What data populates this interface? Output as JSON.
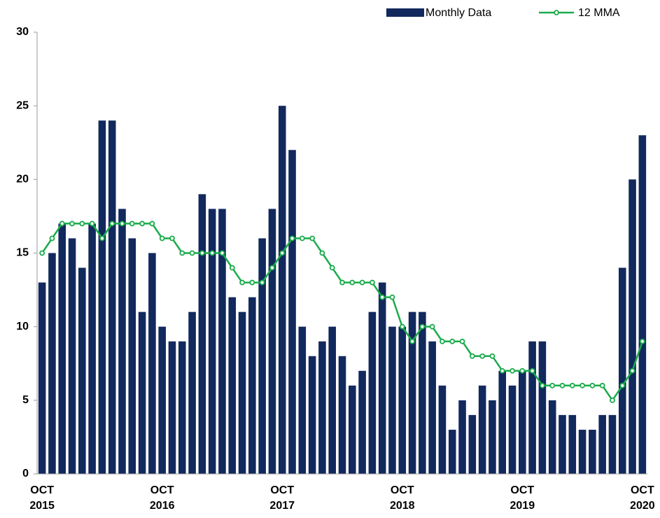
{
  "chart_data": {
    "type": "bar_line",
    "categories": [
      "OCT 2015",
      null,
      null,
      null,
      null,
      null,
      null,
      null,
      null,
      null,
      null,
      null,
      "OCT 2016",
      null,
      null,
      null,
      null,
      null,
      null,
      null,
      null,
      null,
      null,
      null,
      "OCT 2017",
      null,
      null,
      null,
      null,
      null,
      null,
      null,
      null,
      null,
      null,
      null,
      "OCT 2018",
      null,
      null,
      null,
      null,
      null,
      null,
      null,
      null,
      null,
      null,
      null,
      "OCT 2019",
      null,
      null,
      null,
      null,
      null,
      null,
      null,
      null,
      null,
      null,
      null,
      "OCT 2020"
    ],
    "series": [
      {
        "name": "Monthly Data",
        "type": "bar",
        "color": "#12295d",
        "values": [
          13,
          15,
          17,
          16,
          14,
          17,
          24,
          24,
          18,
          16,
          11,
          15,
          10,
          9,
          9,
          11,
          19,
          18,
          18,
          12,
          11,
          12,
          16,
          18,
          25,
          22,
          10,
          8,
          9,
          10,
          8,
          6,
          7,
          11,
          13,
          10,
          10,
          11,
          11,
          9,
          6,
          3,
          5,
          4,
          6,
          5,
          7,
          6,
          7,
          9,
          9,
          5,
          4,
          4,
          3,
          3,
          4,
          4,
          14,
          20,
          23
        ]
      },
      {
        "name": "12 MMA",
        "type": "line",
        "color": "#1aab4b",
        "values": [
          15,
          16,
          17,
          17,
          17,
          17,
          16,
          17,
          17,
          17,
          17,
          17,
          16,
          16,
          15,
          15,
          15,
          15,
          15,
          14,
          13,
          13,
          13,
          14,
          15,
          16,
          16,
          16,
          15,
          14,
          13,
          13,
          13,
          13,
          12,
          12,
          10,
          9,
          10,
          10,
          9,
          9,
          9,
          8,
          8,
          8,
          7,
          7,
          7,
          7,
          6,
          6,
          6,
          6,
          6,
          6,
          6,
          5,
          6,
          7,
          9
        ]
      }
    ],
    "ylim": [
      0,
      30
    ],
    "yticks": [
      0,
      5,
      10,
      15,
      20,
      25,
      30
    ],
    "grid": false,
    "legend": "top-right"
  }
}
